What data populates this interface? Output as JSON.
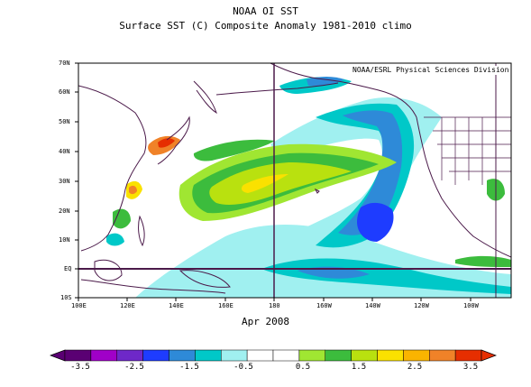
{
  "titles": {
    "line1": "NOAA OI SST",
    "line2": "Surface SST (C) Composite Anomaly 1981-2010 climo",
    "date": "Apr 2008",
    "credit": "NOAA/ESRL Physical Sciences Division"
  },
  "lat_labels": [
    "70N",
    "60N",
    "50N",
    "40N",
    "30N",
    "20N",
    "10N",
    "EQ",
    "10S"
  ],
  "lon_labels": [
    "100E",
    "120E",
    "140E",
    "160E",
    "180",
    "160W",
    "140W",
    "120W",
    "100W"
  ],
  "colorbar": {
    "labels": [
      "-3.5",
      "-2.5",
      "-1.5",
      "-0.5",
      "0.5",
      "1.5",
      "2.5",
      "3.5"
    ],
    "colors": [
      "#5a0073",
      "#a000c8",
      "#6e28c8",
      "#1e3cff",
      "#2e8ad8",
      "#00c8c8",
      "#a0f0f0",
      "#ffffff",
      "#ffffff",
      "#a0e632",
      "#3cbc3d",
      "#b9e10f",
      "#fae100",
      "#fab400",
      "#f08228",
      "#e62e00"
    ]
  },
  "map_colors": {
    "ocean": "#ffffff",
    "land_outline": "#4b1a4a",
    "light_cyan": "#a0f0f0",
    "cyan": "#00c8c8",
    "blue": "#2e8ad8",
    "dark_blue": "#1e3cff",
    "green": "#3cbc3d",
    "light_green": "#a0e632",
    "yellow": "#fae100",
    "orange": "#fab400",
    "red": "#e62e00"
  }
}
